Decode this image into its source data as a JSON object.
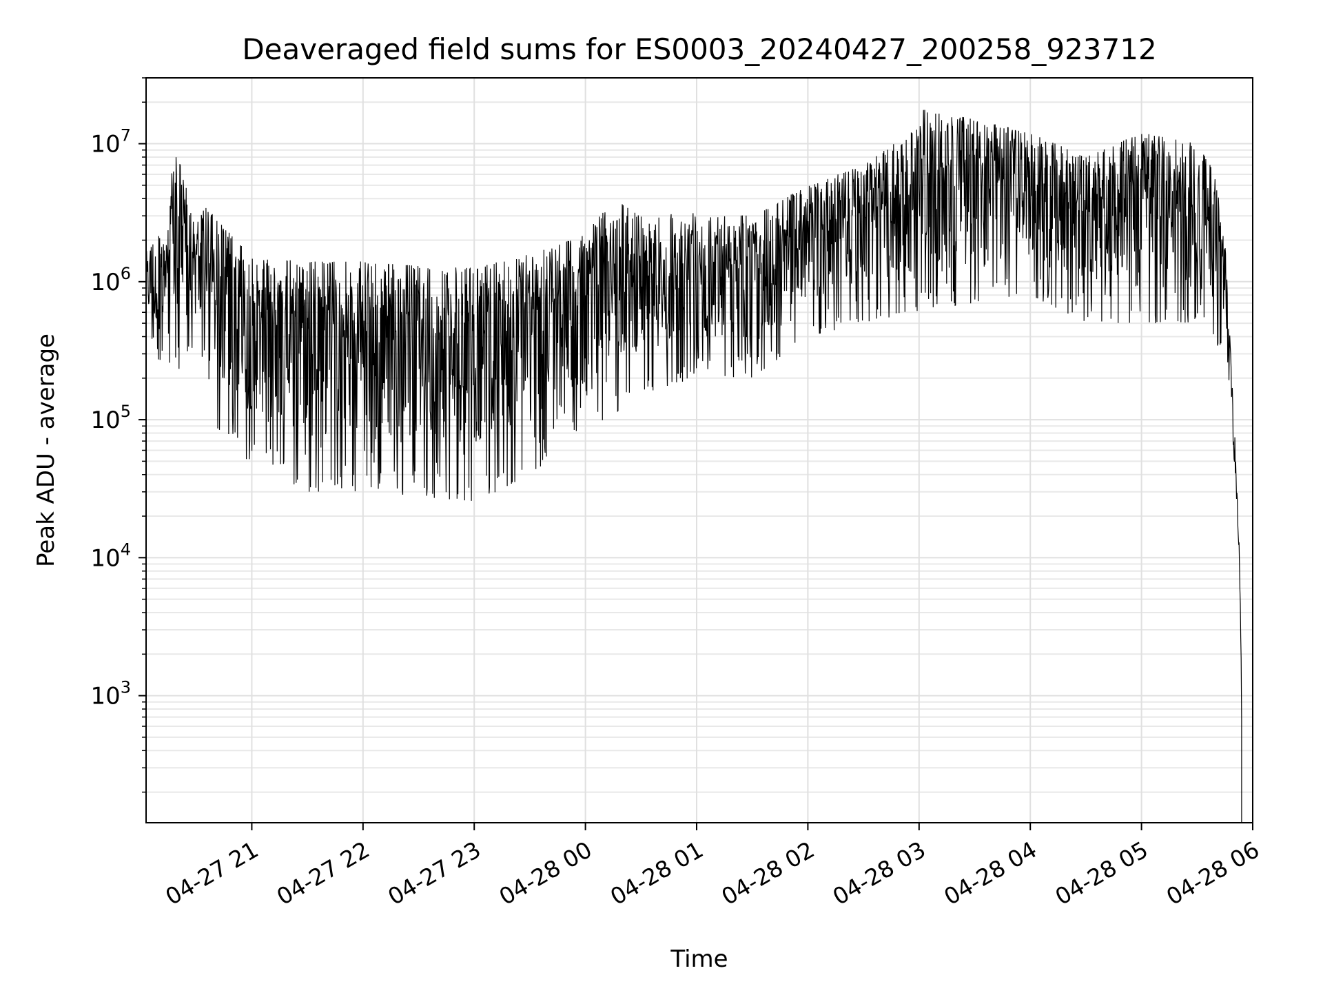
{
  "chart_data": {
    "type": "line",
    "title": "Deaveraged field sums for ES0003_20240427_200258_923712",
    "xlabel": "Time",
    "ylabel": "Peak ADU - average",
    "yscale": "log",
    "ylim": [
      120,
      30000000
    ],
    "xlim": [
      "2024-04-27 20:02:58",
      "2024-04-28 06:00:00"
    ],
    "grid": true,
    "legend": "none",
    "line_color": "#000000",
    "x_ticks": [
      {
        "value": "2024-04-27 21:00",
        "label": "04-27 21"
      },
      {
        "value": "2024-04-27 22:00",
        "label": "04-27 22"
      },
      {
        "value": "2024-04-27 23:00",
        "label": "04-27 23"
      },
      {
        "value": "2024-04-28 00:00",
        "label": "04-28 00"
      },
      {
        "value": "2024-04-28 01:00",
        "label": "04-28 01"
      },
      {
        "value": "2024-04-28 02:00",
        "label": "04-28 02"
      },
      {
        "value": "2024-04-28 03:00",
        "label": "04-28 03"
      },
      {
        "value": "2024-04-28 04:00",
        "label": "04-28 04"
      },
      {
        "value": "2024-04-28 05:00",
        "label": "04-28 05"
      },
      {
        "value": "2024-04-28 06:00",
        "label": "04-28 06"
      }
    ],
    "y_ticks": [
      {
        "value": 1000,
        "base": "10",
        "exp": "3"
      },
      {
        "value": 10000,
        "base": "10",
        "exp": "4"
      },
      {
        "value": 100000,
        "base": "10",
        "exp": "5"
      },
      {
        "value": 1000000,
        "base": "10",
        "exp": "6"
      },
      {
        "value": 10000000,
        "base": "10",
        "exp": "7"
      }
    ],
    "series": [
      {
        "upper_envelope": [
          [
            "2024-04-27 20:03",
            1800000
          ],
          [
            "2024-04-27 20:15",
            2500000
          ],
          [
            "2024-04-27 20:18",
            10500000
          ],
          [
            "2024-04-27 20:30",
            2600000
          ],
          [
            "2024-04-27 20:35",
            3500000
          ],
          [
            "2024-04-27 21:00",
            1500000
          ],
          [
            "2024-04-27 21:30",
            1400000
          ],
          [
            "2024-04-27 22:00",
            1400000
          ],
          [
            "2024-04-27 22:30",
            1300000
          ],
          [
            "2024-04-27 23:00",
            1250000
          ],
          [
            "2024-04-27 23:30",
            1600000
          ],
          [
            "2024-04-28 00:00",
            2200000
          ],
          [
            "2024-04-28 00:15",
            4000000
          ],
          [
            "2024-04-28 00:30",
            3000000
          ],
          [
            "2024-04-28 01:00",
            3200000
          ],
          [
            "2024-04-28 01:30",
            3000000
          ],
          [
            "2024-04-28 02:00",
            5000000
          ],
          [
            "2024-04-28 02:30",
            7000000
          ],
          [
            "2024-04-28 02:55",
            12000000
          ],
          [
            "2024-04-28 03:00",
            18000000
          ],
          [
            "2024-04-28 03:30",
            15000000
          ],
          [
            "2024-04-28 04:00",
            12000000
          ],
          [
            "2024-04-28 04:30",
            8000000
          ],
          [
            "2024-04-28 05:00",
            12000000
          ],
          [
            "2024-04-28 05:30",
            10000000
          ],
          [
            "2024-04-28 05:40",
            6000000
          ],
          [
            "2024-04-28 05:45",
            2000000
          ],
          [
            "2024-04-28 05:50",
            100000
          ],
          [
            "2024-04-28 05:53",
            10000
          ],
          [
            "2024-04-28 05:54",
            1200
          ]
        ],
        "lower_envelope": [
          [
            "2024-04-27 20:03",
            400000
          ],
          [
            "2024-04-27 20:15",
            200000
          ],
          [
            "2024-04-27 20:30",
            300000
          ],
          [
            "2024-04-27 20:45",
            60000
          ],
          [
            "2024-04-27 21:00",
            50000
          ],
          [
            "2024-04-27 21:30",
            30000
          ],
          [
            "2024-04-27 22:00",
            30000
          ],
          [
            "2024-04-27 22:30",
            28000
          ],
          [
            "2024-04-27 23:00",
            25000
          ],
          [
            "2024-04-27 23:30",
            40000
          ],
          [
            "2024-04-28 00:00",
            80000
          ],
          [
            "2024-04-28 00:30",
            150000
          ],
          [
            "2024-04-28 01:00",
            200000
          ],
          [
            "2024-04-28 01:30",
            200000
          ],
          [
            "2024-04-28 02:00",
            400000
          ],
          [
            "2024-04-28 02:30",
            500000
          ],
          [
            "2024-04-28 03:00",
            600000
          ],
          [
            "2024-04-28 03:30",
            700000
          ],
          [
            "2024-04-28 04:00",
            800000
          ],
          [
            "2024-04-28 04:30",
            500000
          ],
          [
            "2024-04-28 05:00",
            500000
          ],
          [
            "2024-04-28 05:30",
            500000
          ],
          [
            "2024-04-28 05:45",
            300000
          ],
          [
            "2024-04-28 05:50",
            50000
          ],
          [
            "2024-04-28 05:53",
            8000
          ],
          [
            "2024-04-28 05:54",
            120
          ]
        ]
      }
    ]
  }
}
